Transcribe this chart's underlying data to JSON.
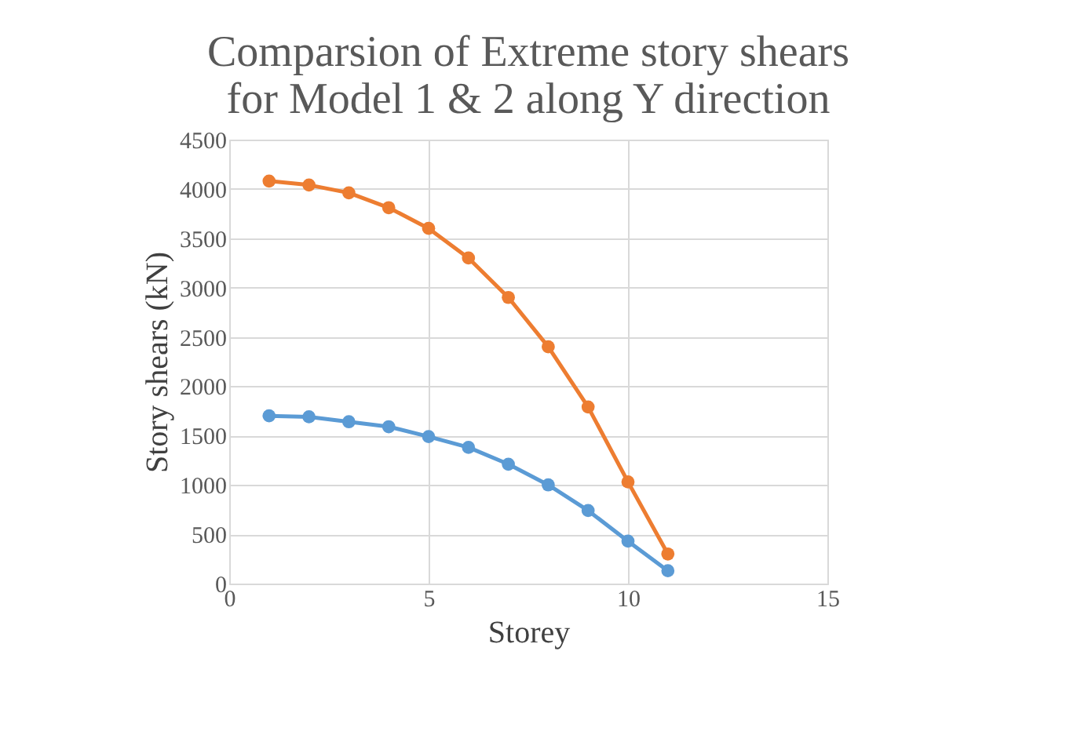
{
  "chart_data": {
    "type": "line",
    "title": [
      "Comparsion of Extreme  story shears",
      "for Model 1 & 2 along Y direction"
    ],
    "xlabel": "Storey",
    "ylabel": "Story shears (kN)",
    "x": [
      1,
      2,
      3,
      4,
      5,
      6,
      7,
      8,
      9,
      10,
      11
    ],
    "series": [
      {
        "color": "#5b9bd5",
        "values": [
          1700,
          1690,
          1640,
          1590,
          1490,
          1380,
          1210,
          1000,
          740,
          430,
          130
        ]
      },
      {
        "color": "#ed7d31",
        "values": [
          4080,
          4040,
          3960,
          3810,
          3600,
          3300,
          2900,
          2400,
          1790,
          1030,
          300
        ]
      }
    ],
    "xlim": [
      0,
      15
    ],
    "xticks": [
      0,
      5,
      10,
      15
    ],
    "ylim": [
      0,
      4500
    ],
    "yticks": [
      0,
      500,
      1000,
      1500,
      2000,
      2500,
      3000,
      3500,
      4000,
      4500
    ],
    "grid": true,
    "marker": "circle",
    "line_style": "solid",
    "legend": false
  }
}
